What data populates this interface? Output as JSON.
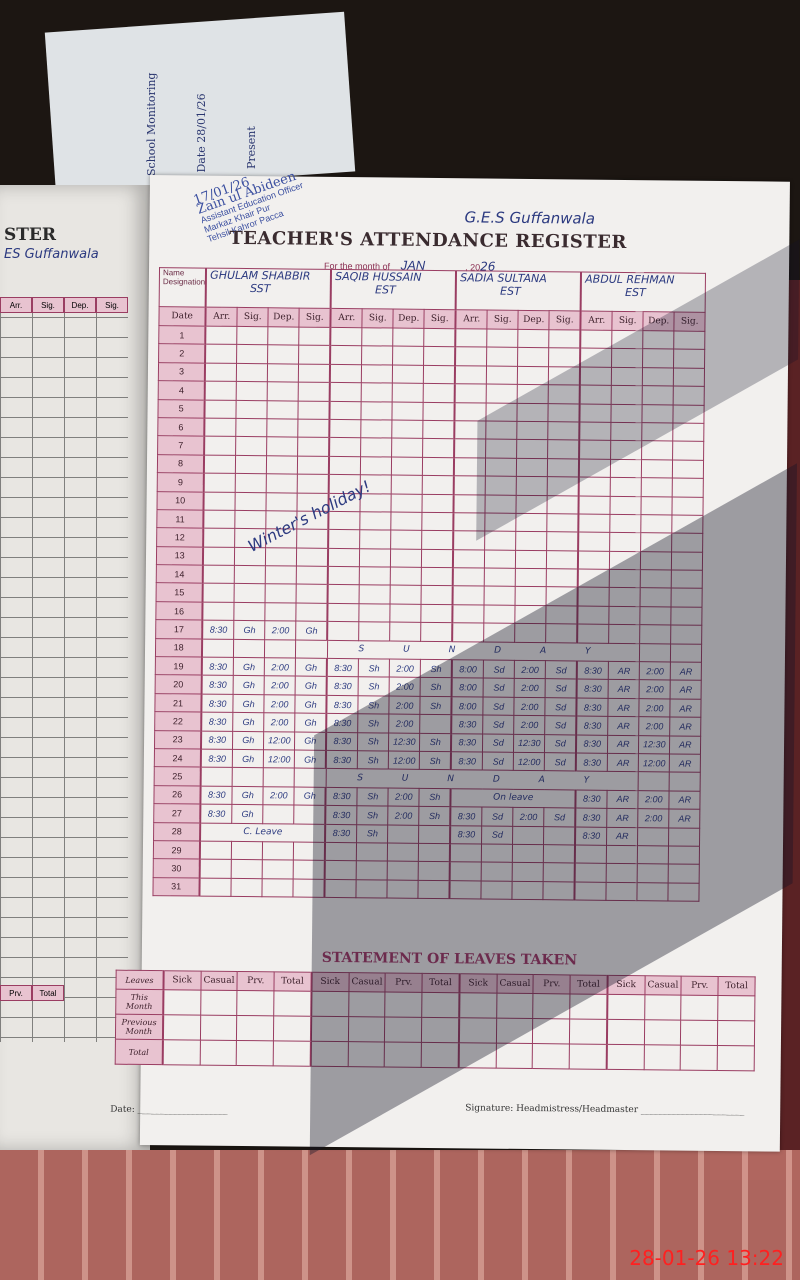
{
  "timestamp": "28-01-26  13:22",
  "left_page": {
    "title_fragment": "STER",
    "school_fragment": "ES Guffanwala",
    "columns": [
      "Arr.",
      "Sig.",
      "Dep.",
      "Sig."
    ],
    "leaves_columns": [
      "Prv.",
      "Total"
    ]
  },
  "register": {
    "title": "TEACHER'S ATTENDANCE REGISTER",
    "school": "G.E.S Guffanwala",
    "stamp": {
      "initials_date": "17/01/26",
      "name": "Zain ul Abideen",
      "line1": "Assistant Education Officer",
      "line2": "Markaz Khair Pur",
      "line3": "Tehsil Kahror Pacca"
    },
    "month_label": "For the month of",
    "month_value": "JAN",
    "year_prefix": "20",
    "year_value": "26",
    "name_label": "Name",
    "designation_label": "Designation",
    "date_header": "Date",
    "sub_headers": [
      "Arr.",
      "Sig.",
      "Dep.",
      "Sig."
    ],
    "teachers": [
      {
        "name": "GHULAM SHABBIR",
        "designation": "SST"
      },
      {
        "name": "SAQIB HUSSAIN",
        "designation": "EST"
      },
      {
        "name": "SADIA SULTANA",
        "designation": "EST"
      },
      {
        "name": "ABDUL REHMAN",
        "designation": "EST"
      }
    ],
    "annotation": "Winter's holiday!",
    "rows": [
      {
        "date": "1"
      },
      {
        "date": "2"
      },
      {
        "date": "3"
      },
      {
        "date": "4"
      },
      {
        "date": "5"
      },
      {
        "date": "6"
      },
      {
        "date": "7"
      },
      {
        "date": "8"
      },
      {
        "date": "9"
      },
      {
        "date": "10"
      },
      {
        "date": "11"
      },
      {
        "date": "12"
      },
      {
        "date": "13"
      },
      {
        "date": "14"
      },
      {
        "date": "15"
      },
      {
        "date": "16"
      },
      {
        "date": "17",
        "cells": [
          [
            "8:30",
            "Gh",
            "2:00",
            "Gh"
          ],
          null,
          null,
          null
        ]
      },
      {
        "date": "18",
        "span": "S U N D A Y"
      },
      {
        "date": "19",
        "cells": [
          [
            "8:30",
            "Gh",
            "2:00",
            "Gh"
          ],
          [
            "8:30",
            "Sh",
            "2:00",
            "Sh"
          ],
          [
            "8:00",
            "Sd",
            "2:00",
            "Sd"
          ],
          [
            "8:30",
            "AR",
            "2:00",
            "AR"
          ]
        ]
      },
      {
        "date": "20",
        "cells": [
          [
            "8:30",
            "Gh",
            "2:00",
            "Gh"
          ],
          [
            "8:30",
            "Sh",
            "2:00",
            "Sh"
          ],
          [
            "8:00",
            "Sd",
            "2:00",
            "Sd"
          ],
          [
            "8:30",
            "AR",
            "2:00",
            "AR"
          ]
        ]
      },
      {
        "date": "21",
        "cells": [
          [
            "8:30",
            "Gh",
            "2:00",
            "Gh"
          ],
          [
            "8:30",
            "Sh",
            "2:00",
            "Sh"
          ],
          [
            "8:00",
            "Sd",
            "2:00",
            "Sd"
          ],
          [
            "8:30",
            "AR",
            "2:00",
            "AR"
          ]
        ]
      },
      {
        "date": "22",
        "cells": [
          [
            "8:30",
            "Gh",
            "2:00",
            "Gh"
          ],
          [
            "8:30",
            "Sh",
            "2:00",
            ""
          ],
          [
            "8:30",
            "Sd",
            "2:00",
            "Sd"
          ],
          [
            "8:30",
            "AR",
            "2:00",
            "AR"
          ]
        ]
      },
      {
        "date": "23",
        "cells": [
          [
            "8:30",
            "Gh",
            "12:00",
            "Gh"
          ],
          [
            "8:30",
            "Sh",
            "12:30",
            "Sh"
          ],
          [
            "8:30",
            "Sd",
            "12:30",
            "Sd"
          ],
          [
            "8:30",
            "AR",
            "12:30",
            "AR"
          ]
        ]
      },
      {
        "date": "24",
        "cells": [
          [
            "8:30",
            "Gh",
            "12:00",
            "Gh"
          ],
          [
            "8:30",
            "Sh",
            "12:00",
            "Sh"
          ],
          [
            "8:30",
            "Sd",
            "12:00",
            "Sd"
          ],
          [
            "8:30",
            "AR",
            "12:00",
            "AR"
          ]
        ]
      },
      {
        "date": "25",
        "span": "S U N D A Y"
      },
      {
        "date": "26",
        "cells": [
          [
            "8:30",
            "Gh",
            "2:00",
            "Gh"
          ],
          [
            "8:30",
            "Sh",
            "2:00",
            "Sh"
          ],
          "On leave",
          [
            "8:30",
            "AR",
            "2:00",
            "AR"
          ]
        ]
      },
      {
        "date": "27",
        "cells": [
          [
            "8:30",
            "Gh",
            "",
            ""
          ],
          [
            "8:30",
            "Sh",
            "2:00",
            "Sh"
          ],
          [
            "8:30",
            "Sd",
            "2:00",
            "Sd"
          ],
          [
            "8:30",
            "AR",
            "2:00",
            "AR"
          ]
        ]
      },
      {
        "date": "28",
        "cells": [
          "C. Leave",
          [
            "8:30",
            "Sh",
            "",
            ""
          ],
          [
            "8:30",
            "Sd",
            "",
            ""
          ],
          [
            "8:30",
            "AR",
            "",
            ""
          ]
        ]
      },
      {
        "date": "29"
      },
      {
        "date": "30"
      },
      {
        "date": "31"
      }
    ]
  },
  "leaves": {
    "title": "STATEMENT OF LEAVES TAKEN",
    "row_header": "Leaves",
    "columns": [
      "Sick",
      "Casual",
      "Prv.",
      "Total"
    ],
    "rows": [
      "This Month",
      "Previous Month",
      "Total"
    ]
  },
  "footer": {
    "date_label": "Date:",
    "signature_label": "Signature: Headmistress/Headmaster"
  }
}
